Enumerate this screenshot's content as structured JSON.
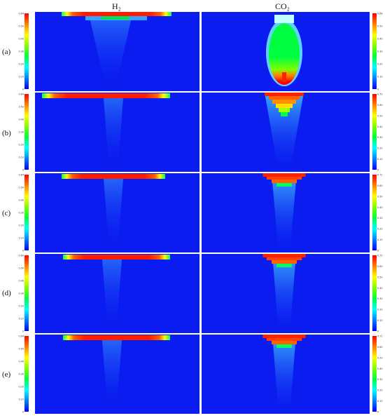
{
  "columns": [
    "H₂",
    "CO₂"
  ],
  "rows": [
    {
      "label": "(a)",
      "h2_ticks": [
        "0.64",
        "0.50",
        "0.40",
        "0.30",
        "0.20",
        "0.10",
        "0"
      ],
      "co2_ticks": [
        "0.64",
        "0.50",
        "0.40",
        "0.30",
        "0.20",
        "0.10",
        "0"
      ]
    },
    {
      "label": "(b)",
      "h2_ticks": [
        "0.64",
        "0.50",
        "0.40",
        "0.30",
        "0.20",
        "0.10",
        "0"
      ],
      "co2_ticks": [
        "0.70",
        "0.60",
        "0.50",
        "0.40",
        "0.30",
        "0.20",
        "0.10",
        "0"
      ]
    },
    {
      "label": "(c)",
      "h2_ticks": [
        "0.64",
        "0.50",
        "0.40",
        "0.30",
        "0.20",
        "0.10",
        "0"
      ],
      "co2_ticks": [
        "0.71",
        "0.60",
        "0.50",
        "0.40",
        "0.30",
        "0.20",
        "0.10",
        "0"
      ]
    },
    {
      "label": "(d)",
      "h2_ticks": [
        "0.64",
        "0.50",
        "0.40",
        "0.30",
        "0.20",
        "0.10",
        "0"
      ],
      "co2_ticks": [
        "0.71",
        "0.60",
        "0.50",
        "0.40",
        "0.30",
        "0.20",
        "0.10",
        "0"
      ]
    },
    {
      "label": "(e)",
      "h2_ticks": [
        "0.64",
        "0.50",
        "0.40",
        "0.30",
        "0.20",
        "0.10",
        "0"
      ],
      "co2_ticks": [
        "0.71",
        "0.60",
        "0.50",
        "0.40",
        "0.30",
        "0.20",
        "0.10",
        "0"
      ]
    }
  ],
  "colors": {
    "background_field": "#0a1cf0",
    "scale": [
      "#0000ff",
      "#0080ff",
      "#00ffff",
      "#00ff40",
      "#80ff00",
      "#ffff00",
      "#ff8000",
      "#ff0000"
    ]
  }
}
